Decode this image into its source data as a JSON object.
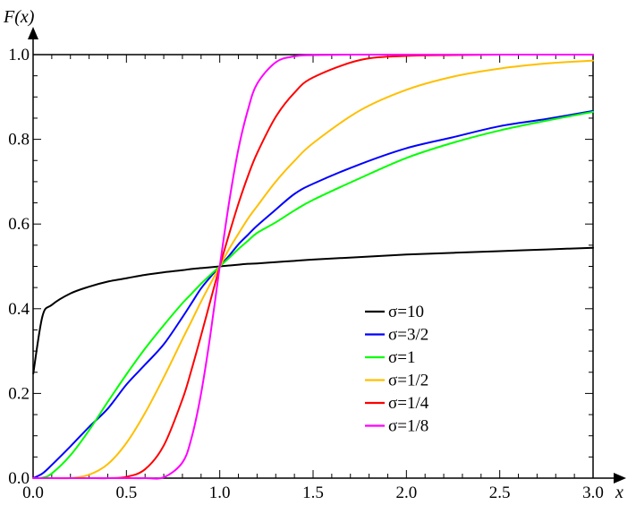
{
  "chart_data": {
    "type": "line",
    "title": "",
    "xlabel": "x",
    "ylabel": "F(x)",
    "xlim": [
      0,
      3
    ],
    "ylim": [
      0,
      1
    ],
    "grid": false,
    "legend_position": "center-right",
    "x_ticks": [
      "0.0",
      "0.5",
      "1.0",
      "1.5",
      "2.0",
      "2.5",
      "3.0"
    ],
    "y_ticks": [
      "0.0",
      "0.2",
      "0.4",
      "0.6",
      "0.8",
      "1.0"
    ],
    "x": [
      0.001,
      0.05,
      0.1,
      0.2,
      0.3,
      0.4,
      0.5,
      0.6,
      0.7,
      0.8,
      0.85,
      0.9,
      0.95,
      1.0,
      1.05,
      1.1,
      1.15,
      1.2,
      1.3,
      1.4,
      1.5,
      1.75,
      2.0,
      2.25,
      2.5,
      2.75,
      3.0
    ],
    "series": [
      {
        "name": "σ=10",
        "color": "#000000",
        "values": [
          0.247,
          0.382,
          0.409,
          0.436,
          0.452,
          0.464,
          0.472,
          0.48,
          0.486,
          0.491,
          0.494,
          0.496,
          0.498,
          0.5,
          0.502,
          0.504,
          0.506,
          0.507,
          0.51,
          0.513,
          0.516,
          0.522,
          0.528,
          0.532,
          0.536,
          0.54,
          0.544
        ]
      },
      {
        "name": "σ=3/2",
        "color": "#0000ff",
        "values": [
          0.0,
          0.011,
          0.031,
          0.075,
          0.121,
          0.164,
          0.221,
          0.268,
          0.316,
          0.38,
          0.414,
          0.448,
          0.475,
          0.5,
          0.525,
          0.552,
          0.574,
          0.596,
          0.634,
          0.671,
          0.695,
          0.741,
          0.779,
          0.805,
          0.831,
          0.848,
          0.867
        ]
      },
      {
        "name": "σ=1",
        "color": "#00ff00",
        "values": [
          0.0,
          0.001,
          0.011,
          0.054,
          0.113,
          0.18,
          0.245,
          0.306,
          0.361,
          0.413,
          0.436,
          0.459,
          0.48,
          0.5,
          0.52,
          0.541,
          0.56,
          0.579,
          0.604,
          0.632,
          0.657,
          0.708,
          0.756,
          0.792,
          0.821,
          0.844,
          0.865
        ]
      },
      {
        "name": "σ=1/2",
        "color": "#ffbf00",
        "values": [
          0.0,
          0.0,
          0.0,
          0.0,
          0.008,
          0.033,
          0.083,
          0.154,
          0.238,
          0.328,
          0.372,
          0.417,
          0.459,
          0.5,
          0.541,
          0.577,
          0.612,
          0.642,
          0.7,
          0.749,
          0.791,
          0.868,
          0.917,
          0.948,
          0.967,
          0.979,
          0.986
        ]
      },
      {
        "name": "σ=1/4",
        "color": "#ff0000",
        "values": [
          0.0,
          0.0,
          0.0,
          0.0,
          0.0,
          0.0,
          0.003,
          0.021,
          0.077,
          0.186,
          0.258,
          0.337,
          0.419,
          0.5,
          0.576,
          0.648,
          0.712,
          0.767,
          0.853,
          0.91,
          0.946,
          0.987,
          0.997,
          0.999,
          1.0,
          1.0,
          1.0
        ]
      },
      {
        "name": "σ=1/8",
        "color": "#ff00ff",
        "values": [
          0.0,
          0.0,
          0.0,
          0.0,
          0.0,
          0.0,
          0.0,
          0.0,
          0.002,
          0.037,
          0.097,
          0.2,
          0.339,
          0.5,
          0.651,
          0.777,
          0.868,
          0.931,
          0.982,
          0.996,
          0.999,
          1.0,
          1.0,
          1.0,
          1.0,
          1.0,
          1.0
        ]
      }
    ]
  }
}
